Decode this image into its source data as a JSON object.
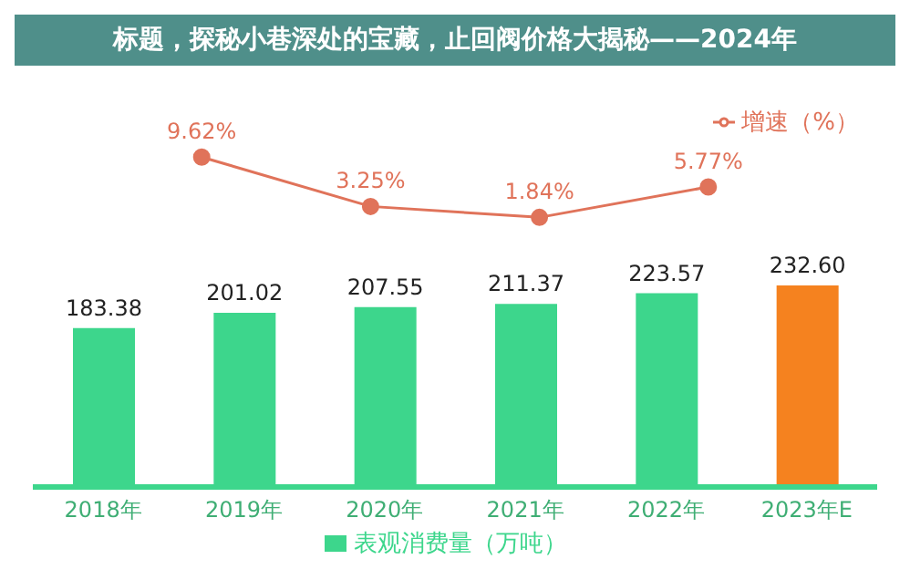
{
  "chart_data": [
    {
      "type": "line",
      "title": "标题，探秘小巷深处的宝藏，止回阀价格大揭秘——2024年",
      "categories": [
        null,
        null,
        null,
        null,
        null,
        null
      ],
      "series": [
        {
          "name": "增速（%）",
          "color": "#e0735a",
          "values": [
            null,
            9.62,
            3.25,
            1.84,
            5.77,
            null
          ],
          "value_labels": [
            null,
            "9.62%",
            "3.25%",
            "1.84%",
            "5.77%",
            null
          ]
        }
      ],
      "tick_labels": false,
      "marker": "circle",
      "legend": "top right"
    },
    {
      "type": "bar",
      "categories": [
        "2018年",
        "2019年",
        "2020年",
        "2021年",
        "2022年",
        "2023年E"
      ],
      "series": [
        {
          "name": "表观消费量（万吨）",
          "color": "#3dd68c",
          "colors": [
            "#3dd68c",
            "#3dd68c",
            "#3dd68c",
            "#3dd68c",
            "#3dd68c",
            "#f5821f"
          ],
          "values": [
            183.38,
            201.02,
            207.55,
            211.37,
            223.57,
            232.6
          ],
          "value_labels": [
            "183.38",
            "201.02",
            "207.55",
            "211.37",
            "223.57",
            "232.60"
          ]
        }
      ],
      "tick_labels": "x",
      "legend": "bottom"
    }
  ]
}
